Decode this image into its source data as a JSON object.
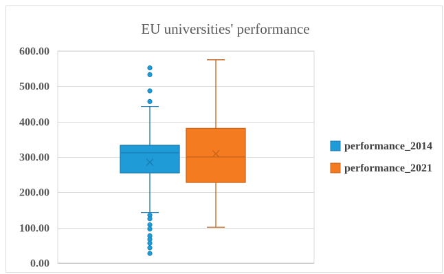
{
  "chart_data": {
    "type": "box",
    "title": "EU universities'  performance",
    "xlabel": "",
    "ylabel": "",
    "ylim": [
      0,
      600
    ],
    "y_ticks": [
      0,
      100,
      200,
      300,
      400,
      500,
      600
    ],
    "y_tick_labels": [
      "0.00",
      "100.00",
      "200.00",
      "300.00",
      "400.00",
      "500.00",
      "600.00"
    ],
    "grid": true,
    "legend_position": "right",
    "series": [
      {
        "name": "performance_2014",
        "color": "#1f9bd7",
        "edge_color": "#1a7bb0",
        "whisker_low": 143,
        "q1": 255,
        "median": 312,
        "q3": 333,
        "whisker_high": 443,
        "mean": 285,
        "outliers": [
          552,
          533,
          487,
          457,
          135,
          125,
          108,
          96,
          77,
          67,
          56,
          43,
          27
        ]
      },
      {
        "name": "performance_2021",
        "color": "#f47b20",
        "edge_color": "#c8631a",
        "whisker_low": 101,
        "q1": 228,
        "median": 300,
        "q3": 381,
        "whisker_high": 575,
        "mean": 309,
        "outliers": []
      }
    ]
  }
}
